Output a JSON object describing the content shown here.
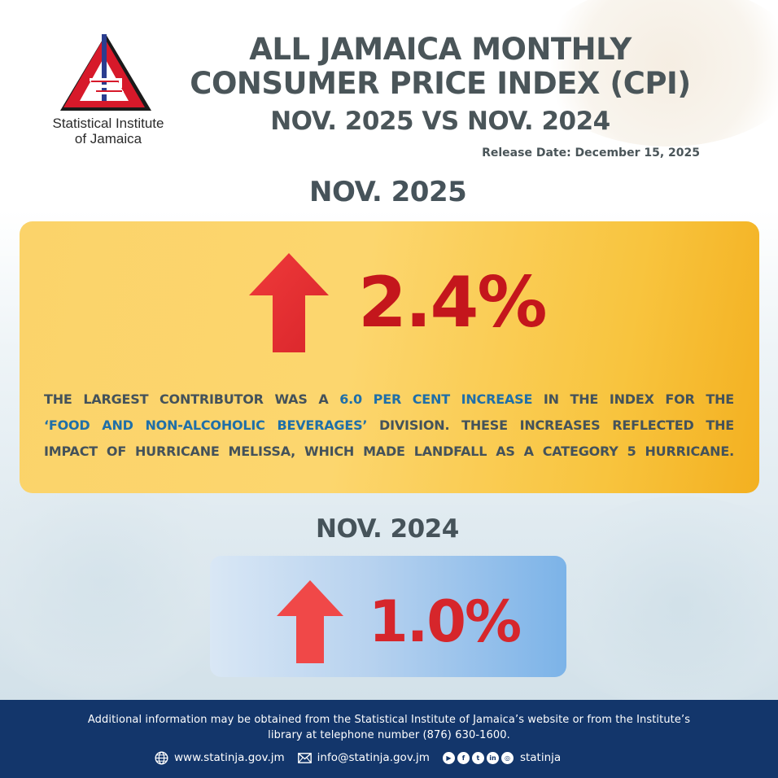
{
  "header": {
    "logo_text_line1": "Statistical Institute",
    "logo_text_line2": "of Jamaica",
    "title_line1": "ALL JAMAICA MONTHLY",
    "title_line2": "CONSUMER PRICE INDEX (CPI)",
    "title_line3": "NOV. 2025 VS NOV. 2024",
    "release_date": "Release Date: December 15, 2025"
  },
  "current": {
    "label": "NOV. 2025",
    "change": "2.4%",
    "direction": "up",
    "arrow_icon": "up-arrow-icon",
    "description": {
      "l1_a": "THE LARGEST CONTRIBUTOR WAS A ",
      "l1_hl": "6.0 PER CENT INCREASE",
      "l1_b": " IN THE INDEX FOR THE",
      "l2_hl": "‘FOOD AND NON-ALCOHOLIC BEVERAGES’",
      "l2_b": " DIVISION. THESE INCREASES REFLECTED THE",
      "l3": "IMPACT OF HURRICANE MELISSA, WHICH MADE LANDFALL AS A CATEGORY 5 HURRICANE."
    },
    "card_color": "#fbd36a",
    "value_color": "#c4161c",
    "highlight_color": "#1f6fa8"
  },
  "previous": {
    "label": "NOV. 2024",
    "change": "1.0%",
    "direction": "up",
    "arrow_icon": "up-arrow-icon",
    "card_color": "#7cb3e8",
    "value_color": "#d6262b"
  },
  "footer": {
    "note_line1": "Additional information may be obtained from the Statistical Institute of Jamaica’s website or from the Institute’s",
    "note_line2": "library at telephone number (876) 630-1600.",
    "website": "www.statinja.gov.jm",
    "email": "info@statinja.gov.jm",
    "social_handle": "statinja",
    "social_icons": [
      "youtube-icon",
      "facebook-icon",
      "twitter-icon",
      "linkedin-icon",
      "instagram-icon"
    ],
    "background_color": "#13366b"
  }
}
